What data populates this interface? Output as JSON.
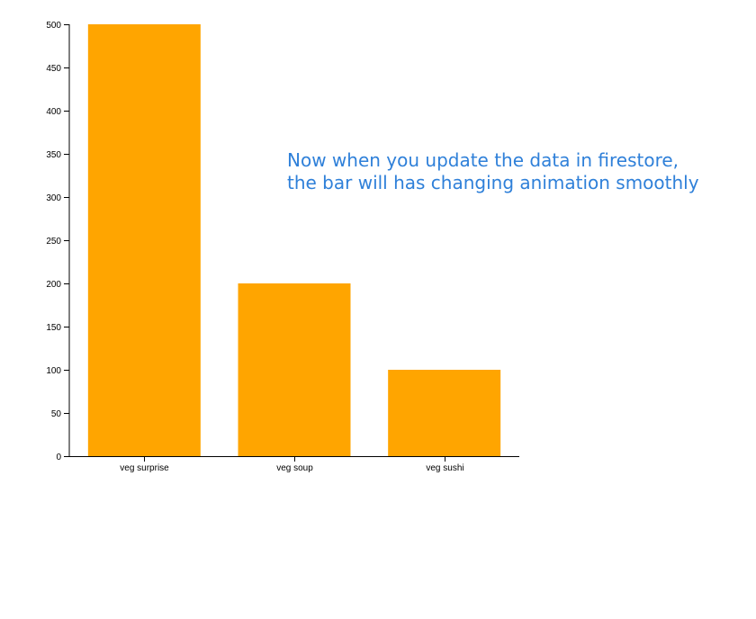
{
  "chart_data": {
    "type": "bar",
    "categories": [
      "veg surprise",
      "veg soup",
      "veg sushi"
    ],
    "values": [
      500,
      200,
      100
    ],
    "title": "",
    "xlabel": "",
    "ylabel": "",
    "ylim": [
      0,
      500
    ],
    "yticks": [
      0,
      50,
      100,
      150,
      200,
      250,
      300,
      350,
      400,
      450,
      500
    ],
    "bar_color": "#ffa500",
    "grid": false
  },
  "annotation": {
    "line1": "Now when you update the data in firestore,",
    "line2": "the bar will has changing animation smoothly",
    "color": "#2f80d9"
  }
}
